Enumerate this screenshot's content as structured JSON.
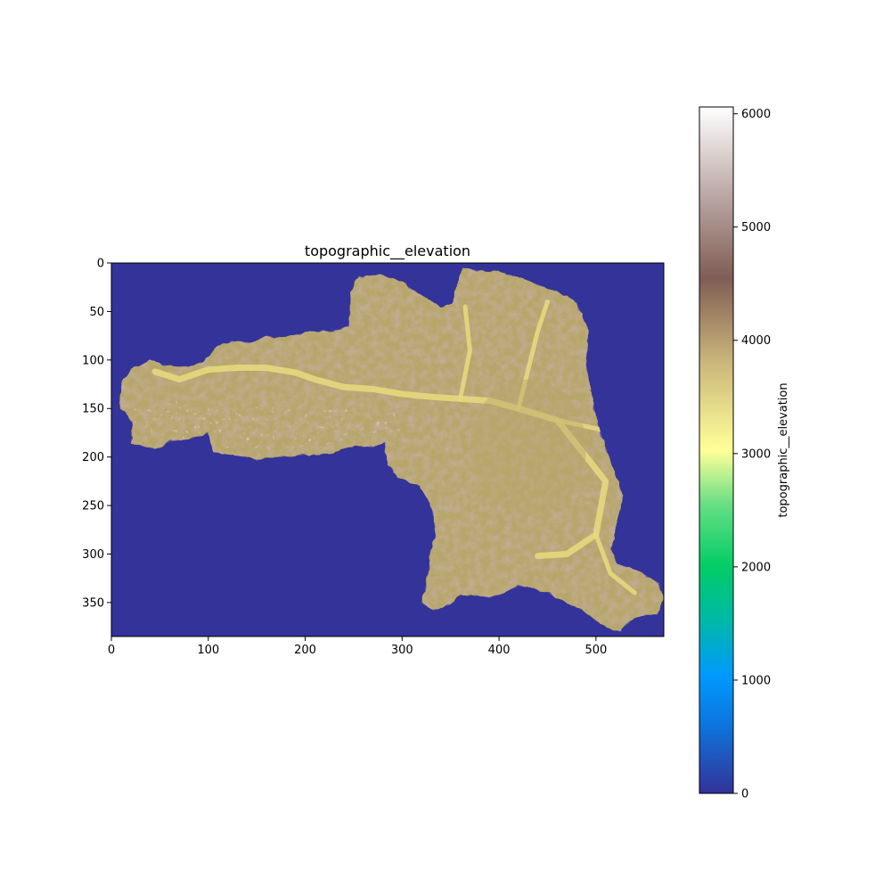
{
  "chart_data": {
    "type": "heatmap",
    "title": "topographic__elevation",
    "xlabel": "",
    "ylabel": "",
    "xlim": [
      0,
      570
    ],
    "ylim": [
      385,
      0
    ],
    "x_ticks": [
      0,
      100,
      200,
      300,
      400,
      500
    ],
    "y_ticks": [
      0,
      50,
      100,
      150,
      200,
      250,
      300,
      350
    ],
    "colormap": "terrain",
    "colorbar": {
      "label": "topographic__elevation",
      "range": [
        0,
        6060
      ],
      "ticks": [
        0,
        1000,
        2000,
        3000,
        4000,
        5000,
        6000
      ]
    },
    "nodata_value": 0,
    "colors": {
      "background": "#333399",
      "valley": "#e6dc7e",
      "mid": "#b7a66a",
      "ridge": "#8c6c5a",
      "peak": "#f2efee"
    },
    "elevation_summary": {
      "min": 0,
      "max": 6060,
      "valley_floor_approx": 3300,
      "plateau_approx": 3900,
      "peaks_approx": 5800
    },
    "region_outline": [
      [
        8,
        145
      ],
      [
        12,
        120
      ],
      [
        25,
        108
      ],
      [
        40,
        100
      ],
      [
        55,
        105
      ],
      [
        75,
        108
      ],
      [
        95,
        102
      ],
      [
        110,
        85
      ],
      [
        125,
        80
      ],
      [
        145,
        82
      ],
      [
        160,
        75
      ],
      [
        175,
        77
      ],
      [
        200,
        72
      ],
      [
        225,
        70
      ],
      [
        245,
        65
      ],
      [
        247,
        30
      ],
      [
        255,
        14
      ],
      [
        278,
        12
      ],
      [
        300,
        20
      ],
      [
        318,
        32
      ],
      [
        340,
        45
      ],
      [
        352,
        42
      ],
      [
        358,
        18
      ],
      [
        362,
        5
      ],
      [
        380,
        8
      ],
      [
        405,
        10
      ],
      [
        430,
        18
      ],
      [
        455,
        28
      ],
      [
        480,
        40
      ],
      [
        492,
        70
      ],
      [
        490,
        105
      ],
      [
        497,
        145
      ],
      [
        505,
        175
      ],
      [
        517,
        210
      ],
      [
        528,
        240
      ],
      [
        522,
        265
      ],
      [
        516,
        295
      ],
      [
        522,
        310
      ],
      [
        545,
        318
      ],
      [
        565,
        330
      ],
      [
        570,
        345
      ],
      [
        562,
        362
      ],
      [
        540,
        365
      ],
      [
        525,
        380
      ],
      [
        510,
        375
      ],
      [
        490,
        360
      ],
      [
        470,
        350
      ],
      [
        450,
        340
      ],
      [
        435,
        335
      ],
      [
        420,
        333
      ],
      [
        405,
        340
      ],
      [
        390,
        345
      ],
      [
        375,
        342
      ],
      [
        360,
        343
      ],
      [
        350,
        352
      ],
      [
        332,
        358
      ],
      [
        320,
        350
      ],
      [
        325,
        330
      ],
      [
        330,
        300
      ],
      [
        335,
        278
      ],
      [
        330,
        250
      ],
      [
        318,
        230
      ],
      [
        295,
        220
      ],
      [
        285,
        208
      ],
      [
        282,
        185
      ],
      [
        270,
        190
      ],
      [
        250,
        188
      ],
      [
        230,
        195
      ],
      [
        215,
        198
      ],
      [
        195,
        198
      ],
      [
        175,
        200
      ],
      [
        150,
        202
      ],
      [
        125,
        198
      ],
      [
        105,
        195
      ],
      [
        100,
        175
      ],
      [
        80,
        182
      ],
      [
        60,
        184
      ],
      [
        45,
        192
      ],
      [
        30,
        188
      ],
      [
        20,
        185
      ],
      [
        22,
        165
      ]
    ],
    "valleys": [
      [
        [
          45,
          112
        ],
        [
          70,
          120
        ],
        [
          100,
          110
        ],
        [
          130,
          108
        ],
        [
          160,
          108
        ],
        [
          190,
          113
        ],
        [
          210,
          120
        ],
        [
          240,
          128
        ],
        [
          270,
          130
        ],
        [
          300,
          135
        ],
        [
          330,
          138
        ],
        [
          360,
          140
        ],
        [
          390,
          142
        ],
        [
          420,
          150
        ],
        [
          460,
          162
        ],
        [
          510,
          225
        ],
        [
          500,
          280
        ],
        [
          470,
          300
        ],
        [
          440,
          302
        ]
      ],
      [
        [
          420,
          150
        ],
        [
          430,
          110
        ],
        [
          440,
          70
        ],
        [
          450,
          40
        ]
      ],
      [
        [
          360,
          140
        ],
        [
          370,
          90
        ],
        [
          365,
          45
        ]
      ],
      [
        [
          460,
          162
        ],
        [
          520,
          175
        ],
        [
          545,
          190
        ]
      ],
      [
        [
          500,
          280
        ],
        [
          515,
          320
        ],
        [
          540,
          340
        ]
      ]
    ]
  }
}
